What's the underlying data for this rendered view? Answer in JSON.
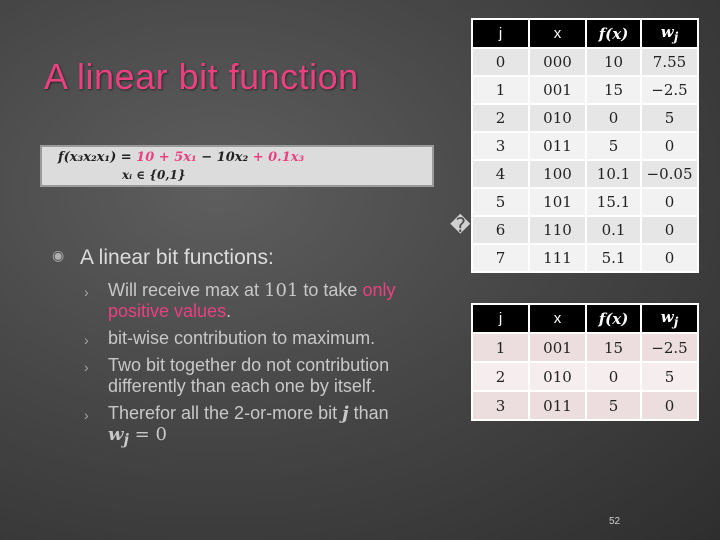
{
  "slide": {
    "title": "A linear bit function",
    "formula": {
      "lhs": "f(x₃x₂x₁) = ",
      "term1": "10 + 5x₁",
      "term2": " − 10x₂ ",
      "term3": "+ 0.1x₃",
      "constraint": "xᵢ ∈ {0,1}"
    },
    "glyph": "�",
    "main_bullet": {
      "icon": "◉",
      "text": "A linear bit functions:"
    },
    "sub_arrow": "›",
    "sub_bullets": {
      "b1_a": "Will receive max at ",
      "b1_num": "101",
      "b1_b": " to take ",
      "b1_hl": "only positive values",
      "b1_c": ".",
      "b2": "bit-wise contribution to maximum.",
      "b3": "Two bit together do not contribution differently than each one by itself.",
      "b4_a": "Therefor all the 2-or-more bit ",
      "b4_j": "j",
      "b4_b": " than ",
      "b4_w": "w",
      "b4_sub": "j",
      "b4_c": " = 0"
    },
    "page_number": "52"
  },
  "table1": {
    "headers": [
      "j",
      "x",
      "f(x)",
      "w",
      "j"
    ],
    "rows": [
      [
        "0",
        "000",
        "10",
        "7.55"
      ],
      [
        "1",
        "001",
        "15",
        "−2.5"
      ],
      [
        "2",
        "010",
        "0",
        "5"
      ],
      [
        "3",
        "011",
        "5",
        "0"
      ],
      [
        "4",
        "100",
        "10.1",
        "−0.05"
      ],
      [
        "5",
        "101",
        "15.1",
        "0"
      ],
      [
        "6",
        "110",
        "0.1",
        "0"
      ],
      [
        "7",
        "111",
        "5.1",
        "0"
      ]
    ]
  },
  "table2": {
    "headers": [
      "j",
      "x",
      "f(x)",
      "w",
      "j"
    ],
    "rows": [
      [
        "1",
        "001",
        "15",
        "−2.5"
      ],
      [
        "2",
        "010",
        "0",
        "5"
      ],
      [
        "3",
        "011",
        "5",
        "0"
      ]
    ]
  },
  "colors": {
    "accent": "#e8417f",
    "background": "#474747",
    "table_header": "#000000"
  }
}
